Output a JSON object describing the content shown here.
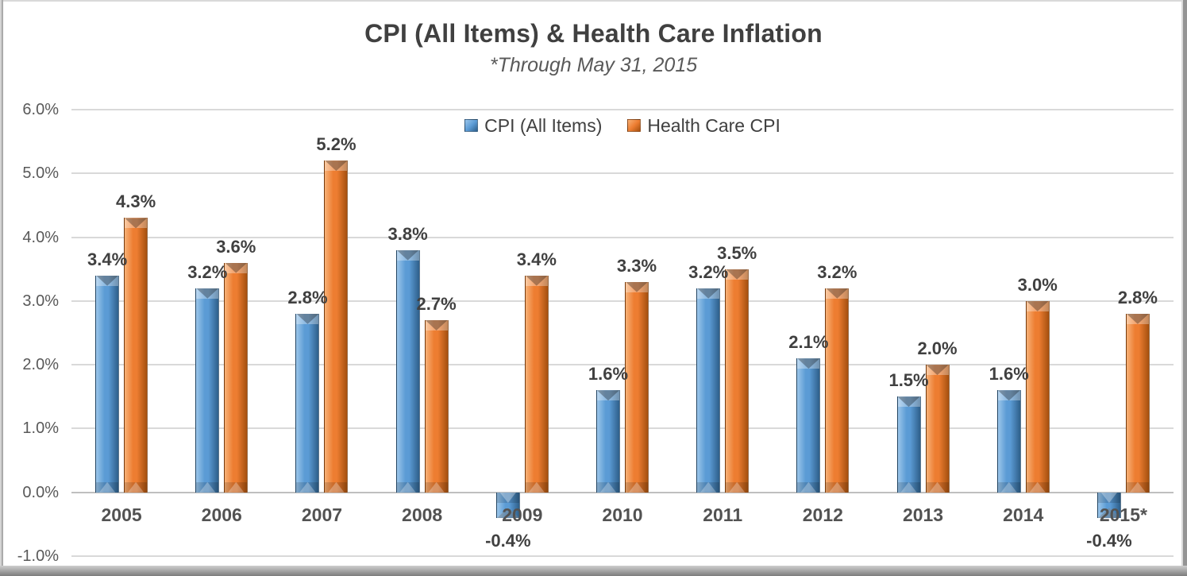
{
  "chart_data": {
    "type": "bar",
    "title": "CPI (All Items) & Health Care Inflation",
    "subtitle": "*Through May 31, 2015",
    "categories": [
      "2005",
      "2006",
      "2007",
      "2008",
      "2009",
      "2010",
      "2011",
      "2012",
      "2013",
      "2014",
      "2015*"
    ],
    "series": [
      {
        "name": "CPI (All Items)",
        "color": "#5B9BD5",
        "color_light": "#9CC6EA",
        "color_dark": "#2E5F8A",
        "values": [
          3.4,
          3.2,
          2.8,
          3.8,
          -0.4,
          1.6,
          3.2,
          2.1,
          1.5,
          1.6,
          -0.4
        ]
      },
      {
        "name": "Health Care CPI",
        "color": "#ED7D31",
        "color_light": "#F7B177",
        "color_dark": "#A5500F",
        "values": [
          4.3,
          3.6,
          5.2,
          2.7,
          3.4,
          3.3,
          3.5,
          3.2,
          2.0,
          3.0,
          2.8
        ]
      }
    ],
    "ylim": [
      -1.0,
      6.0
    ],
    "ytick_labels": [
      "6.0%",
      "5.0%",
      "4.0%",
      "3.0%",
      "2.0%",
      "1.0%",
      "0.0%",
      "-1.0%"
    ],
    "data_label_format": "0.0%",
    "grid": true,
    "legend_position": "top-center",
    "grid_color": "#D9D9D9",
    "zero_axis_color": "#BFBFBF",
    "label_color": "#404040",
    "axis_text_color": "#595959"
  }
}
